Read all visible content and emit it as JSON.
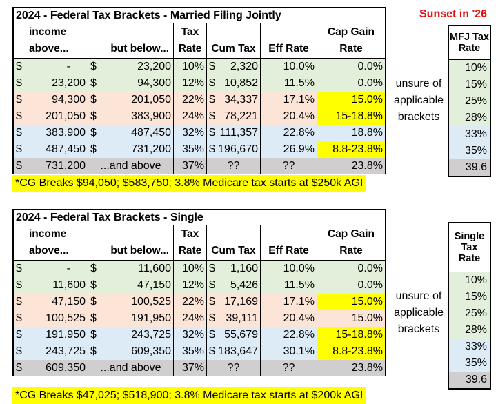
{
  "sunset": "Sunset in '26",
  "headers": {
    "income": [
      "income",
      "above..."
    ],
    "below": [
      "",
      "but below..."
    ],
    "rate": [
      "Tax",
      "Rate"
    ],
    "cum": [
      "",
      "Cum Tax"
    ],
    "eff": [
      "",
      "Eff Rate"
    ],
    "cg": [
      "Cap Gain",
      "Rate"
    ]
  },
  "notes": {
    "line1": "unsure of",
    "line2": "applicable",
    "line3": "brackets"
  },
  "mfj": {
    "title": "2024 - Federal Tax Brackets - Married Filing Jointly",
    "side_header": [
      "MFJ Tax",
      "Rate"
    ],
    "rows": [
      {
        "above": "-",
        "below": "23,200",
        "rate": "10%",
        "cum": "2,320",
        "eff": "10.0%",
        "cg": "0.0%",
        "side": "10%"
      },
      {
        "above": "23,200",
        "below": "94,300",
        "rate": "12%",
        "cum": "10,852",
        "eff": "11.5%",
        "cg": "0.0%",
        "side": "15%"
      },
      {
        "above": "94,300",
        "below": "201,050",
        "rate": "22%",
        "cum": "34,337",
        "eff": "17.1%",
        "cg": "15.0%",
        "side": "25%"
      },
      {
        "above": "201,050",
        "below": "383,900",
        "rate": "24%",
        "cum": "78,221",
        "eff": "20.4%",
        "cg": "15-18.8%",
        "side": "28%"
      },
      {
        "above": "383,900",
        "below": "487,450",
        "rate": "32%",
        "cum": "111,357",
        "eff": "22.8%",
        "cg": "18.8%",
        "side": "33%"
      },
      {
        "above": "487,450",
        "below": "731,200",
        "rate": "35%",
        "cum": "196,670",
        "eff": "26.9%",
        "cg": "8.8-23.8%",
        "side": "35%"
      }
    ],
    "last": {
      "above": "731,200",
      "below": "...and above",
      "rate": "37%",
      "cum": "??",
      "eff": "??",
      "cg": "23.8%",
      "side": "39.6"
    },
    "footer": "*CG Breaks $94,050; $583,750; 3.8% Medicare tax starts at $250k AGI"
  },
  "single": {
    "title": "2024 - Federal Tax Brackets - Single",
    "side_header": [
      "Single",
      "Tax",
      "Rate"
    ],
    "rows": [
      {
        "above": "-",
        "below": "11,600",
        "rate": "10%",
        "cum": "1,160",
        "eff": "10.0%",
        "cg": "0.0%",
        "side": "10%"
      },
      {
        "above": "11,600",
        "below": "47,150",
        "rate": "12%",
        "cum": "5,426",
        "eff": "11.5%",
        "cg": "0.0%",
        "side": "15%"
      },
      {
        "above": "47,150",
        "below": "100,525",
        "rate": "22%",
        "cum": "17,169",
        "eff": "17.1%",
        "cg": "15.0%",
        "side": "25%"
      },
      {
        "above": "100,525",
        "below": "191,950",
        "rate": "24%",
        "cum": "39,111",
        "eff": "20.4%",
        "cg": "15.0%",
        "side": "28%"
      },
      {
        "above": "191,950",
        "below": "243,725",
        "rate": "32%",
        "cum": "55,679",
        "eff": "22.8%",
        "cg": "15-18.8%",
        "side": "33%"
      },
      {
        "above": "243,725",
        "below": "609,350",
        "rate": "35%",
        "cum": "183,647",
        "eff": "30.1%",
        "cg": "8.8-23.8%",
        "side": "35%"
      }
    ],
    "last": {
      "above": "609,350",
      "below": "...and above",
      "rate": "37%",
      "cum": "??",
      "eff": "??",
      "cg": "23.8%",
      "side": "39.6"
    },
    "footer": "*CG Breaks $47,025; $518,900; 3.8% Medicare tax starts at $200k AGI"
  },
  "dollar": "$"
}
